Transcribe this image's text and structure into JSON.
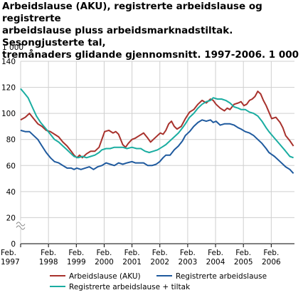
{
  "title_lines": [
    "Arbeidslause (AKU), registrerte arbeidslause og registrerte",
    "arbeidslause pluss arbeidsmarknadstiltak. Sesongjusterte tal,",
    "tremånaders glidande gjennomsnitt. 1997-2006. 1 000"
  ],
  "chart_data": {
    "type": "line",
    "title": "Arbeidslause (AKU), registrerte arbeidslause og registrerte arbeidslause pluss arbeidsmarknadstiltak. Sesongjusterte tal, tremånaders glidande gjennomsnitt. 1997-2006. 1 000",
    "unit_label": "1 000",
    "ylim": [
      0,
      140
    ],
    "y_ticks": [
      0,
      20,
      40,
      60,
      80,
      100,
      120,
      140
    ],
    "y_axis_break": true,
    "xlim": [
      1997.083,
      2006.917
    ],
    "x_ticks": [
      {
        "x": 1997.083,
        "line1": "Feb.",
        "line2": "1997"
      },
      {
        "x": 1998.083,
        "line1": "Feb.",
        "line2": "1998"
      },
      {
        "x": 1999.083,
        "line1": "Feb.",
        "line2": "1999"
      },
      {
        "x": 2000.083,
        "line1": "Feb.",
        "line2": "2000"
      },
      {
        "x": 2001.083,
        "line1": "Feb.",
        "line2": "2001"
      },
      {
        "x": 2002.083,
        "line1": "Feb.",
        "line2": "2002"
      },
      {
        "x": 2003.083,
        "line1": "Feb.",
        "line2": "2003"
      },
      {
        "x": 2004.083,
        "line1": "Feb.",
        "line2": "2004"
      },
      {
        "x": 2005.083,
        "line1": "Feb.",
        "line2": "2005"
      },
      {
        "x": 2006.083,
        "line1": "Feb.",
        "line2": "2006"
      }
    ],
    "grid": true,
    "legend_position": "bottom",
    "series": [
      {
        "name": "Arbeidslause (AKU)",
        "color": "#a8322d",
        "points": [
          [
            1997.08,
            95
          ],
          [
            1997.25,
            97
          ],
          [
            1997.4,
            100
          ],
          [
            1997.55,
            96
          ],
          [
            1997.7,
            92
          ],
          [
            1997.85,
            90
          ],
          [
            1998.0,
            87
          ],
          [
            1998.15,
            86
          ],
          [
            1998.3,
            84
          ],
          [
            1998.45,
            82
          ],
          [
            1998.6,
            78
          ],
          [
            1998.75,
            75
          ],
          [
            1998.9,
            71
          ],
          [
            1999.0,
            68
          ],
          [
            1999.1,
            66
          ],
          [
            1999.2,
            68
          ],
          [
            1999.3,
            66
          ],
          [
            1999.45,
            69
          ],
          [
            1999.6,
            71
          ],
          [
            1999.75,
            71
          ],
          [
            1999.9,
            74
          ],
          [
            2000.0,
            80
          ],
          [
            2000.1,
            86
          ],
          [
            2000.25,
            87
          ],
          [
            2000.4,
            85
          ],
          [
            2000.5,
            86
          ],
          [
            2000.6,
            84
          ],
          [
            2000.75,
            76
          ],
          [
            2000.85,
            74
          ],
          [
            2000.95,
            77
          ],
          [
            2001.08,
            80
          ],
          [
            2001.2,
            81
          ],
          [
            2001.35,
            83
          ],
          [
            2001.5,
            85
          ],
          [
            2001.65,
            81
          ],
          [
            2001.75,
            78
          ],
          [
            2001.85,
            80
          ],
          [
            2002.0,
            83
          ],
          [
            2002.1,
            85
          ],
          [
            2002.2,
            84
          ],
          [
            2002.3,
            87
          ],
          [
            2002.4,
            92
          ],
          [
            2002.5,
            94
          ],
          [
            2002.6,
            90
          ],
          [
            2002.7,
            88
          ],
          [
            2002.85,
            90
          ],
          [
            2003.0,
            96
          ],
          [
            2003.15,
            101
          ],
          [
            2003.3,
            103
          ],
          [
            2003.45,
            107
          ],
          [
            2003.6,
            110
          ],
          [
            2003.75,
            108
          ],
          [
            2003.9,
            111
          ],
          [
            2004.0,
            110
          ],
          [
            2004.1,
            107
          ],
          [
            2004.25,
            104
          ],
          [
            2004.4,
            102
          ],
          [
            2004.5,
            104
          ],
          [
            2004.6,
            103
          ],
          [
            2004.75,
            107
          ],
          [
            2004.9,
            108
          ],
          [
            2005.0,
            109
          ],
          [
            2005.1,
            106
          ],
          [
            2005.2,
            107
          ],
          [
            2005.3,
            110
          ],
          [
            2005.4,
            111
          ],
          [
            2005.5,
            113
          ],
          [
            2005.6,
            117
          ],
          [
            2005.7,
            115
          ],
          [
            2005.8,
            110
          ],
          [
            2005.9,
            106
          ],
          [
            2006.0,
            101
          ],
          [
            2006.1,
            96
          ],
          [
            2006.25,
            97
          ],
          [
            2006.4,
            93
          ],
          [
            2006.5,
            89
          ],
          [
            2006.6,
            83
          ],
          [
            2006.75,
            79
          ],
          [
            2006.88,
            75
          ]
        ]
      },
      {
        "name": "Registrerte arbeidslause",
        "color": "#1f5a9e",
        "points": [
          [
            1997.08,
            87
          ],
          [
            1997.25,
            86
          ],
          [
            1997.4,
            86
          ],
          [
            1997.55,
            83
          ],
          [
            1997.7,
            80
          ],
          [
            1997.85,
            75
          ],
          [
            1998.0,
            70
          ],
          [
            1998.15,
            66
          ],
          [
            1998.3,
            63
          ],
          [
            1998.45,
            62
          ],
          [
            1998.6,
            60
          ],
          [
            1998.75,
            58
          ],
          [
            1998.9,
            58
          ],
          [
            1999.0,
            57
          ],
          [
            1999.1,
            58
          ],
          [
            1999.25,
            57
          ],
          [
            1999.4,
            58
          ],
          [
            1999.55,
            59
          ],
          [
            1999.7,
            57
          ],
          [
            1999.85,
            59
          ],
          [
            2000.0,
            60
          ],
          [
            2000.15,
            62
          ],
          [
            2000.3,
            61
          ],
          [
            2000.45,
            60
          ],
          [
            2000.6,
            62
          ],
          [
            2000.75,
            61
          ],
          [
            2000.9,
            62
          ],
          [
            2001.08,
            63
          ],
          [
            2001.2,
            62
          ],
          [
            2001.35,
            62
          ],
          [
            2001.5,
            62
          ],
          [
            2001.65,
            60
          ],
          [
            2001.8,
            60
          ],
          [
            2001.95,
            61
          ],
          [
            2002.08,
            63
          ],
          [
            2002.2,
            66
          ],
          [
            2002.3,
            68
          ],
          [
            2002.45,
            68
          ],
          [
            2002.6,
            72
          ],
          [
            2002.75,
            75
          ],
          [
            2002.9,
            79
          ],
          [
            2003.0,
            83
          ],
          [
            2003.15,
            86
          ],
          [
            2003.3,
            90
          ],
          [
            2003.45,
            93
          ],
          [
            2003.6,
            95
          ],
          [
            2003.75,
            94
          ],
          [
            2003.9,
            95
          ],
          [
            2004.0,
            93
          ],
          [
            2004.1,
            94
          ],
          [
            2004.25,
            91
          ],
          [
            2004.4,
            92
          ],
          [
            2004.6,
            92
          ],
          [
            2004.75,
            91
          ],
          [
            2004.9,
            89
          ],
          [
            2005.0,
            88
          ],
          [
            2005.15,
            86
          ],
          [
            2005.3,
            85
          ],
          [
            2005.45,
            83
          ],
          [
            2005.6,
            80
          ],
          [
            2005.75,
            77
          ],
          [
            2005.9,
            73
          ],
          [
            2006.0,
            70
          ],
          [
            2006.2,
            67
          ],
          [
            2006.4,
            63
          ],
          [
            2006.6,
            59
          ],
          [
            2006.75,
            57
          ],
          [
            2006.88,
            54
          ]
        ]
      },
      {
        "name": "Registrerte arbeidslause + tiltak",
        "color": "#1aada1",
        "points": [
          [
            1997.08,
            119
          ],
          [
            1997.2,
            116
          ],
          [
            1997.35,
            112
          ],
          [
            1997.5,
            105
          ],
          [
            1997.65,
            98
          ],
          [
            1997.8,
            93
          ],
          [
            1998.0,
            88
          ],
          [
            1998.15,
            84
          ],
          [
            1998.3,
            80
          ],
          [
            1998.45,
            78
          ],
          [
            1998.6,
            75
          ],
          [
            1998.75,
            72
          ],
          [
            1998.9,
            69
          ],
          [
            1999.0,
            67
          ],
          [
            1999.15,
            66
          ],
          [
            1999.3,
            67
          ],
          [
            1999.45,
            66
          ],
          [
            1999.6,
            67
          ],
          [
            1999.75,
            68
          ],
          [
            1999.9,
            70
          ],
          [
            2000.0,
            72
          ],
          [
            2000.15,
            73
          ],
          [
            2000.3,
            73
          ],
          [
            2000.45,
            74
          ],
          [
            2000.6,
            74
          ],
          [
            2000.75,
            74
          ],
          [
            2000.9,
            73
          ],
          [
            2001.08,
            74
          ],
          [
            2001.25,
            73
          ],
          [
            2001.4,
            73
          ],
          [
            2001.55,
            71
          ],
          [
            2001.7,
            70
          ],
          [
            2001.85,
            71
          ],
          [
            2002.0,
            72
          ],
          [
            2002.15,
            74
          ],
          [
            2002.3,
            76
          ],
          [
            2002.45,
            79
          ],
          [
            2002.6,
            82
          ],
          [
            2002.75,
            85
          ],
          [
            2002.9,
            89
          ],
          [
            2003.0,
            92
          ],
          [
            2003.15,
            97
          ],
          [
            2003.3,
            100
          ],
          [
            2003.45,
            104
          ],
          [
            2003.6,
            107
          ],
          [
            2003.75,
            109
          ],
          [
            2003.9,
            110
          ],
          [
            2004.0,
            112
          ],
          [
            2004.15,
            111
          ],
          [
            2004.3,
            111
          ],
          [
            2004.45,
            110
          ],
          [
            2004.6,
            108
          ],
          [
            2004.75,
            105
          ],
          [
            2004.9,
            104
          ],
          [
            2005.0,
            103
          ],
          [
            2005.15,
            103
          ],
          [
            2005.3,
            101
          ],
          [
            2005.45,
            100
          ],
          [
            2005.6,
            98
          ],
          [
            2005.75,
            94
          ],
          [
            2005.9,
            89
          ],
          [
            2006.0,
            86
          ],
          [
            2006.2,
            81
          ],
          [
            2006.4,
            76
          ],
          [
            2006.6,
            71
          ],
          [
            2006.75,
            67
          ],
          [
            2006.88,
            66
          ]
        ]
      }
    ]
  }
}
